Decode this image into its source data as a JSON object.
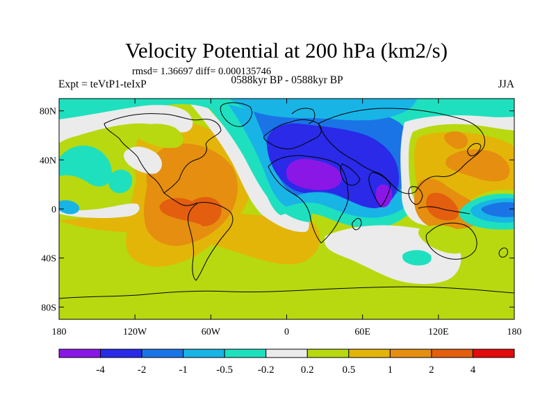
{
  "chart_data": {
    "type": "contour-map",
    "title": "Velocity Potential at 200 hPa (km2/s)",
    "stats_text": "rmsd= 1.36697 diff= 0.000135746",
    "left_label": "Expt = teVtP1-teIxP",
    "center_label": "0588kyr BP - 0588kyr BP",
    "right_label": "JJA",
    "projection": "cylindrical equidistant",
    "lon_range": [
      -180,
      180
    ],
    "lat_range": [
      -90,
      90
    ],
    "x_ticks": [
      {
        "value": -180,
        "label": "180"
      },
      {
        "value": -120,
        "label": "120W"
      },
      {
        "value": -60,
        "label": "60W"
      },
      {
        "value": 0,
        "label": "0"
      },
      {
        "value": 60,
        "label": "60E"
      },
      {
        "value": 120,
        "label": "120E"
      },
      {
        "value": 180,
        "label": "180"
      }
    ],
    "y_ticks": [
      {
        "value": 80,
        "label": "80N"
      },
      {
        "value": 40,
        "label": "40N"
      },
      {
        "value": 0,
        "label": "0"
      },
      {
        "value": -40,
        "label": "40S"
      },
      {
        "value": -80,
        "label": "80S"
      }
    ],
    "colorbar": {
      "colors": [
        "#8a17e6",
        "#2a2ae8",
        "#1a74e6",
        "#19b4e6",
        "#1ee0bf",
        "#ebebeb",
        "#b8d90f",
        "#e3b509",
        "#e58e0f",
        "#e35e0e",
        "#e30b0b"
      ],
      "labels": [
        "-4",
        "-2",
        "-1",
        "-0.5",
        "-0.2",
        "0.2",
        "0.5",
        "1",
        "2",
        "4"
      ]
    }
  }
}
